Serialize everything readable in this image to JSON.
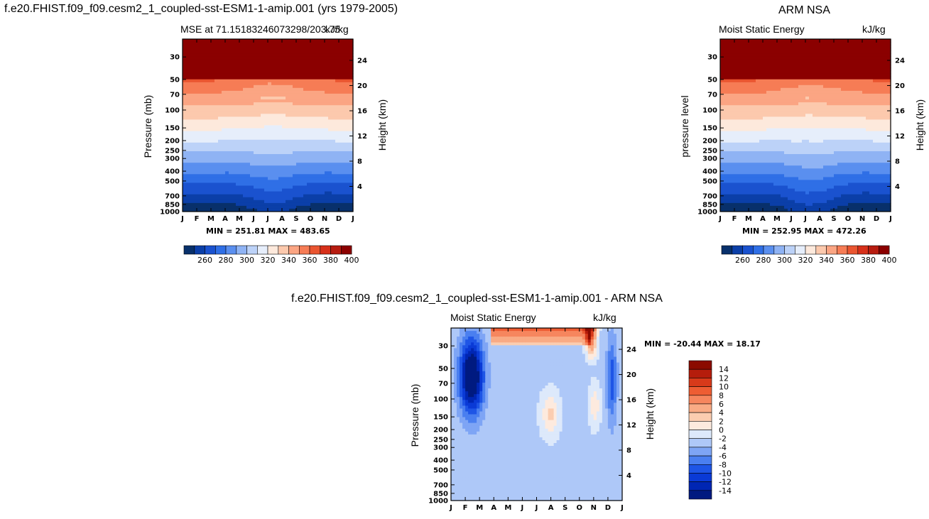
{
  "main_title": "f.e20.FHIST.f09_f09.cesm2_1_coupled-sst-ESM1-1-amip.001 (yrs 1979-2005)",
  "obs_title": "ARM NSA",
  "diff_title": "f.e20.FHIST.f09_f09.cesm2_1_coupled-sst-ESM1-1-amip.001 - ARM NSA",
  "colors": {
    "abs_levels": [
      "#08306b",
      "#0b3fa8",
      "#1a52cf",
      "#2f6fe6",
      "#5a8fef",
      "#8fb3f4",
      "#bcd2f8",
      "#e6eefb",
      "#fde9dc",
      "#fcc9ad",
      "#fba583",
      "#f67c55",
      "#ea5530",
      "#d7301a",
      "#b71c10",
      "#8b0000"
    ],
    "diff_levels": [
      "#001a80",
      "#0026b3",
      "#0a3ad6",
      "#1e55e6",
      "#4a7ff0",
      "#7ea5f5",
      "#aec8f8",
      "#dde9fb",
      "#fdeade",
      "#fbcdb0",
      "#f9ab85",
      "#f6865e",
      "#ee5d33",
      "#d83a1a",
      "#b51d0c",
      "#8b0b00"
    ]
  },
  "chart_data": [
    {
      "id": "model",
      "type": "heatmap",
      "subtitle_left": "MSE at 71.15183246073298/203.75",
      "subtitle_right": "kJ/kg",
      "ylabel": "Pressure (mb)",
      "ylabel_right": "Height (km)",
      "months": [
        "J",
        "F",
        "M",
        "A",
        "M",
        "J",
        "J",
        "A",
        "S",
        "O",
        "N",
        "D",
        "J"
      ],
      "pressure_ticks": [
        "30",
        "50",
        "70",
        "100",
        "150",
        "200",
        "250",
        "300",
        "400",
        "500",
        "700",
        "850",
        "1000"
      ],
      "height_ticks": [
        "24",
        "20",
        "16",
        "12",
        "8",
        "4"
      ],
      "minmax": "MIN = 251.81  MAX = 483.65",
      "levels": [
        260,
        270,
        280,
        290,
        300,
        310,
        320,
        330,
        340,
        350,
        360,
        370,
        380,
        390,
        400
      ],
      "colorbar_labels": [
        "260",
        "280",
        "300",
        "320",
        "340",
        "360",
        "380",
        "400"
      ],
      "base_p": [
        265,
        269,
        279,
        290,
        303,
        317,
        332,
        347,
        360,
        374,
        389,
        403
      ],
      "month_shift": [
        0,
        0,
        0,
        2,
        3,
        5,
        7,
        6,
        4,
        2,
        1,
        0,
        0
      ],
      "month_shift_low": [
        0,
        0,
        0,
        1,
        4,
        9,
        14,
        12,
        6,
        2,
        0,
        0,
        0
      ]
    },
    {
      "id": "obs",
      "type": "heatmap",
      "subtitle_left": "Moist Static Energy",
      "subtitle_right": "kJ/kg",
      "ylabel": "pressure level",
      "ylabel_right": "Height (km)",
      "months": [
        "J",
        "F",
        "M",
        "A",
        "M",
        "J",
        "J",
        "A",
        "S",
        "O",
        "N",
        "D",
        "J"
      ],
      "pressure_ticks": [
        "30",
        "50",
        "70",
        "100",
        "150",
        "200",
        "250",
        "300",
        "400",
        "500",
        "700",
        "850",
        "1000"
      ],
      "height_ticks": [
        "24",
        "20",
        "16",
        "12",
        "8",
        "4"
      ],
      "minmax": "MIN = 252.95  MAX = 472.26",
      "levels": [
        260,
        270,
        280,
        290,
        300,
        310,
        320,
        330,
        340,
        350,
        360,
        370,
        380,
        390,
        400
      ],
      "colorbar_labels": [
        "260",
        "280",
        "300",
        "320",
        "340",
        "360",
        "380",
        "400"
      ],
      "base_p": [
        264,
        268,
        278,
        289,
        302,
        316,
        331,
        346,
        359,
        373,
        388,
        401
      ],
      "month_shift": [
        0,
        0,
        0,
        1,
        3,
        4,
        6,
        5,
        4,
        2,
        1,
        0,
        0
      ],
      "month_shift_low": [
        0,
        0,
        0,
        1,
        4,
        10,
        15,
        13,
        7,
        2,
        0,
        0,
        0
      ]
    },
    {
      "id": "diff",
      "type": "heatmap",
      "subtitle_left": "Moist Static Energy",
      "subtitle_right": "kJ/kg",
      "ylabel": "Pressure (mb)",
      "ylabel_right": "Height (km)",
      "months": [
        "J",
        "F",
        "M",
        "A",
        "M",
        "J",
        "J",
        "A",
        "S",
        "O",
        "N",
        "D",
        "J"
      ],
      "pressure_ticks": [
        "30",
        "50",
        "70",
        "100",
        "150",
        "200",
        "250",
        "300",
        "400",
        "500",
        "700",
        "850",
        "1000"
      ],
      "height_ticks": [
        "24",
        "20",
        "16",
        "12",
        "8",
        "4"
      ],
      "minmax": "MIN = -20.44  MAX =   18.17",
      "levels": [
        -14,
        -12,
        -10,
        -8,
        -6,
        -4,
        -2,
        0,
        2,
        4,
        6,
        8,
        10,
        12,
        14
      ],
      "colorbar_labels": [
        "14",
        "12",
        "10",
        "8",
        "6",
        "4",
        "2",
        "0",
        "-2",
        "-4",
        "-6",
        "-8",
        "-10",
        "-12",
        "-14"
      ]
    }
  ]
}
